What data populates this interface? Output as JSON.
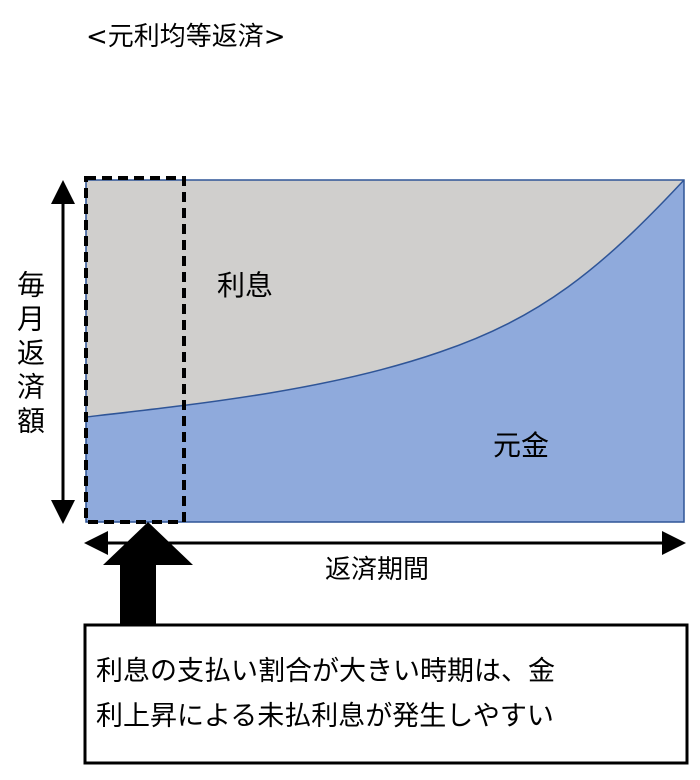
{
  "title": "<元利均等返済>",
  "y_axis_label": "毎月返済額",
  "x_axis_label": "返済期間",
  "area_labels": {
    "interest": "利息",
    "principal": "元金"
  },
  "callout": {
    "line1": "利息の支払い割合が大きい時期は、金",
    "line2": "利上昇による未払利息が発生しやすい"
  },
  "colors": {
    "interest_fill": "#d0cfcd",
    "principal_fill": "#8faadc",
    "border": "#2f5597",
    "arrow": "#000000"
  }
}
